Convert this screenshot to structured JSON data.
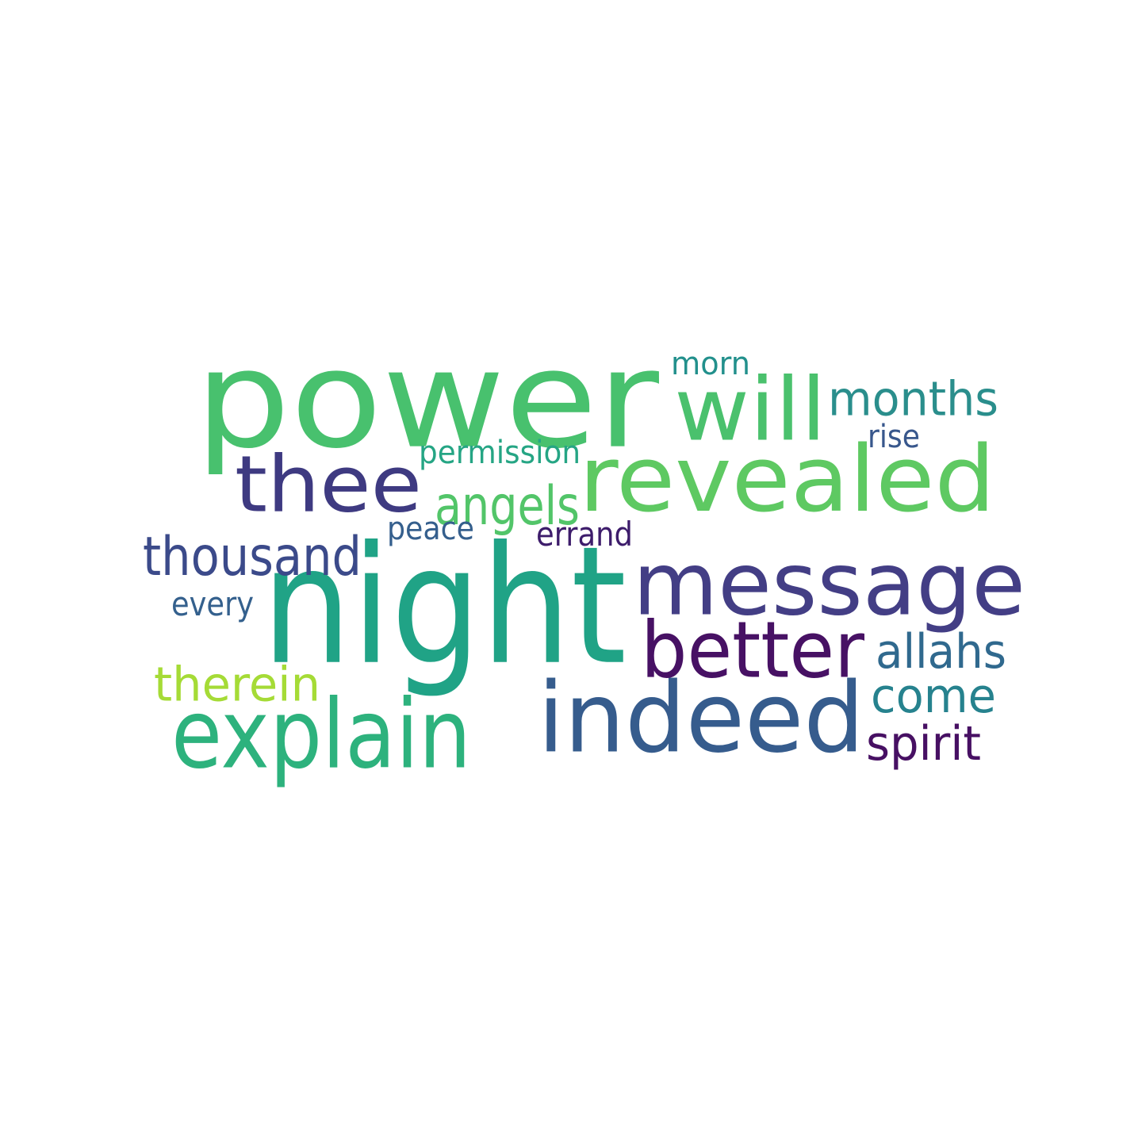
{
  "cloud": {
    "words": [
      {
        "id": "power",
        "text": "power",
        "color": "#48c16e"
      },
      {
        "id": "night",
        "text": "night",
        "color": "#20a386"
      },
      {
        "id": "revealed",
        "text": "revealed",
        "color": "#5ec962"
      },
      {
        "id": "message",
        "text": "message",
        "color": "#433e85"
      },
      {
        "id": "indeed",
        "text": "indeed",
        "color": "#365c8d"
      },
      {
        "id": "will",
        "text": "will",
        "color": "#4ac16d"
      },
      {
        "id": "thee",
        "text": "thee",
        "color": "#3e3a81"
      },
      {
        "id": "explain",
        "text": "explain",
        "color": "#2db27d"
      },
      {
        "id": "better",
        "text": "better",
        "color": "#471164"
      },
      {
        "id": "thousand",
        "text": "thousand",
        "color": "#3b4a8a"
      },
      {
        "id": "angels",
        "text": "angels",
        "color": "#52c569"
      },
      {
        "id": "months",
        "text": "months",
        "color": "#2a8e8c"
      },
      {
        "id": "allahs",
        "text": "allahs",
        "color": "#30698e"
      },
      {
        "id": "therein",
        "text": "therein",
        "color": "#a5db36"
      },
      {
        "id": "come",
        "text": "come",
        "color": "#26828e"
      },
      {
        "id": "spirit",
        "text": "spirit",
        "color": "#471063"
      },
      {
        "id": "permission",
        "text": "permission",
        "color": "#25a584"
      },
      {
        "id": "errand",
        "text": "errand",
        "color": "#3d1c6b"
      },
      {
        "id": "peace",
        "text": "peace",
        "color": "#355f8d"
      },
      {
        "id": "morn",
        "text": "morn",
        "color": "#22908c"
      },
      {
        "id": "rise",
        "text": "rise",
        "color": "#38578c"
      },
      {
        "id": "every",
        "text": "every",
        "color": "#34608d"
      }
    ]
  }
}
